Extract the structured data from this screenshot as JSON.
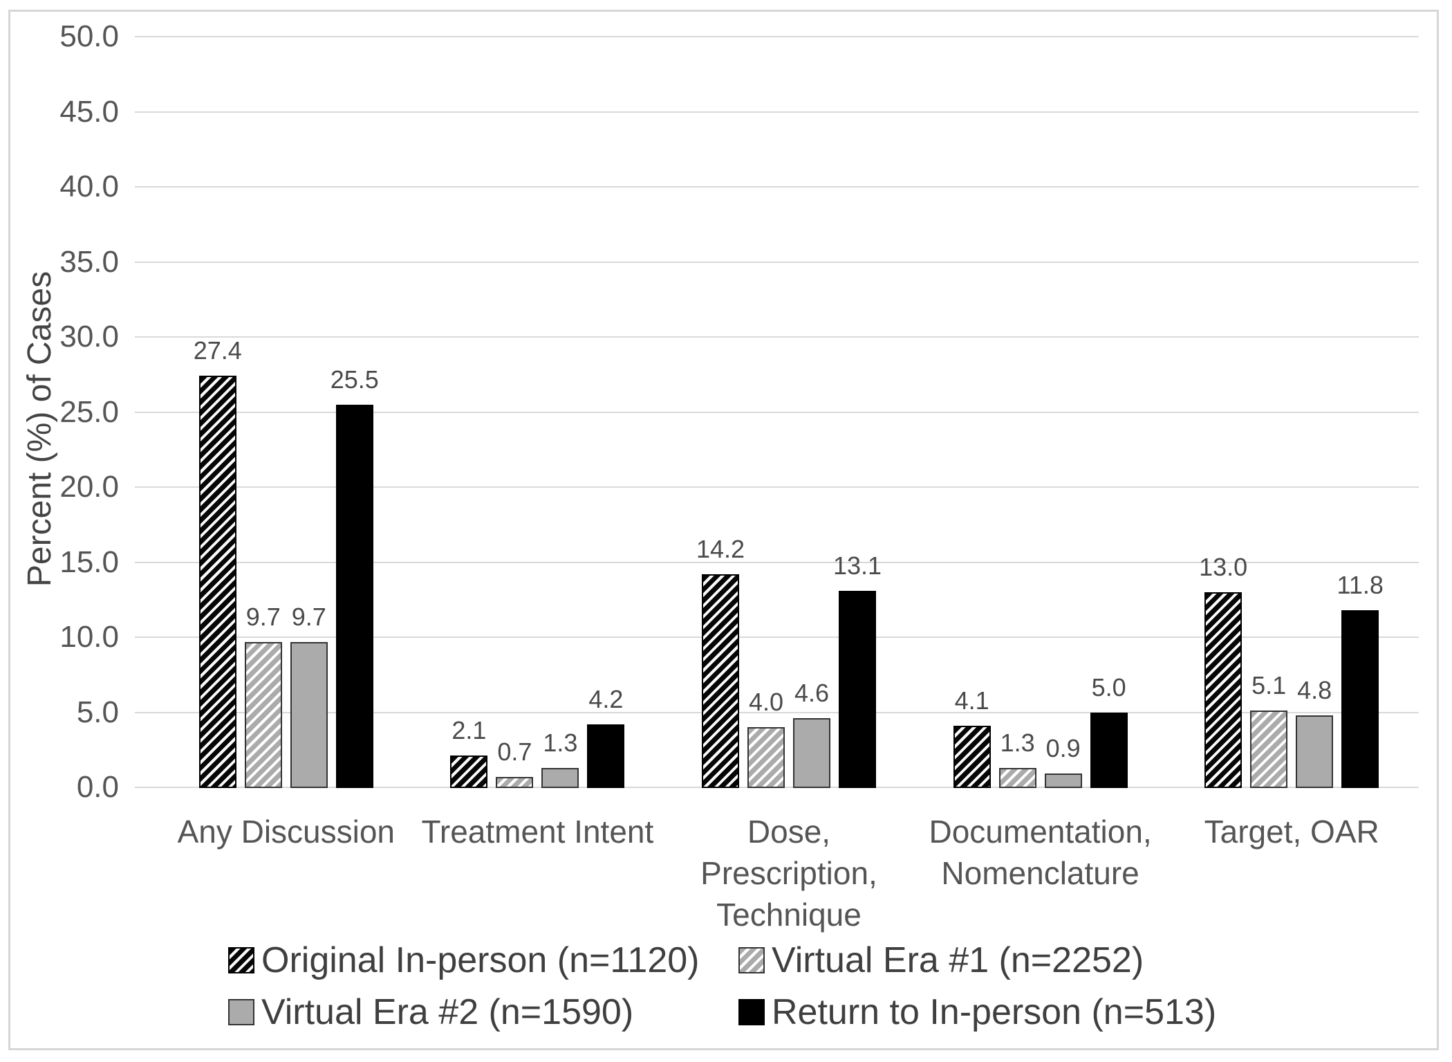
{
  "chart_data": {
    "type": "bar",
    "title": "",
    "xlabel": "",
    "ylabel": "Percent (%) of Cases",
    "ylim": [
      0,
      50
    ],
    "ytick_step": 5,
    "yticks": [
      "0.0",
      "5.0",
      "10.0",
      "15.0",
      "20.0",
      "25.0",
      "30.0",
      "35.0",
      "40.0",
      "45.0",
      "50.0"
    ],
    "grid": "horizontal",
    "legend_position": "bottom",
    "value_labels_decimals": 1,
    "categories": [
      "Any Discussion",
      "Treatment Intent",
      "Dose,\nPrescription,\nTechnique",
      "Documentation,\nNomenclature",
      "Target, OAR"
    ],
    "series": [
      {
        "name": "Original In-person (n=1120)",
        "style": "black-hatch",
        "values": [
          27.4,
          2.1,
          14.2,
          4.1,
          13.0
        ]
      },
      {
        "name": "Virtual Era #1 (n=2252)",
        "style": "gray-hatch",
        "values": [
          9.7,
          0.7,
          4.0,
          1.3,
          5.1
        ]
      },
      {
        "name": "Virtual Era #2 (n=1590)",
        "style": "solid-gray",
        "values": [
          9.7,
          1.3,
          4.6,
          0.9,
          4.8
        ]
      },
      {
        "name": "Return to In-person (n=513)",
        "style": "solid-black",
        "values": [
          25.5,
          4.2,
          13.1,
          5.0,
          11.8
        ]
      }
    ],
    "colors": {
      "grid": "#d9d9d9",
      "axis_text": "#555555",
      "data_label_text": "#4a4a4a",
      "legend_text": "#3f3f3f",
      "bar_gray": "#ababab",
      "bar_black": "#000000",
      "frame_border": "#d6d6d6"
    }
  }
}
